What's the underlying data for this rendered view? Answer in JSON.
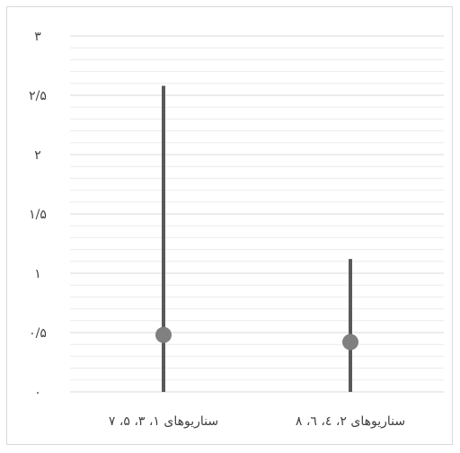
{
  "chart_data": {
    "type": "line",
    "subtype": "high-low with marker",
    "title": "",
    "xlabel": "",
    "ylabel": "",
    "ylim": [
      0,
      3
    ],
    "y_tick_values": [
      0,
      0.5,
      1,
      1.5,
      2,
      2.5,
      3
    ],
    "y_tick_labels": [
      "۰",
      "۰/۵",
      "۱",
      "۱/۵",
      "۲",
      "۲/۵",
      "۳"
    ],
    "categories": [
      "سناریوهای ۱، ۳، ۵، ۷",
      "سناریوهای ۲، ٤، ٦، ۸"
    ],
    "series": [
      {
        "values_low": [
          0,
          0
        ]
      },
      {
        "values_high": [
          2.58,
          1.12
        ]
      },
      {
        "values_marker": [
          0.48,
          0.42
        ]
      }
    ],
    "grid": true,
    "legend": "none",
    "colors": {
      "line": "#595959",
      "marker": "#808080",
      "grid_major": "#d9d9d9",
      "grid_minor": "#ececec"
    }
  }
}
